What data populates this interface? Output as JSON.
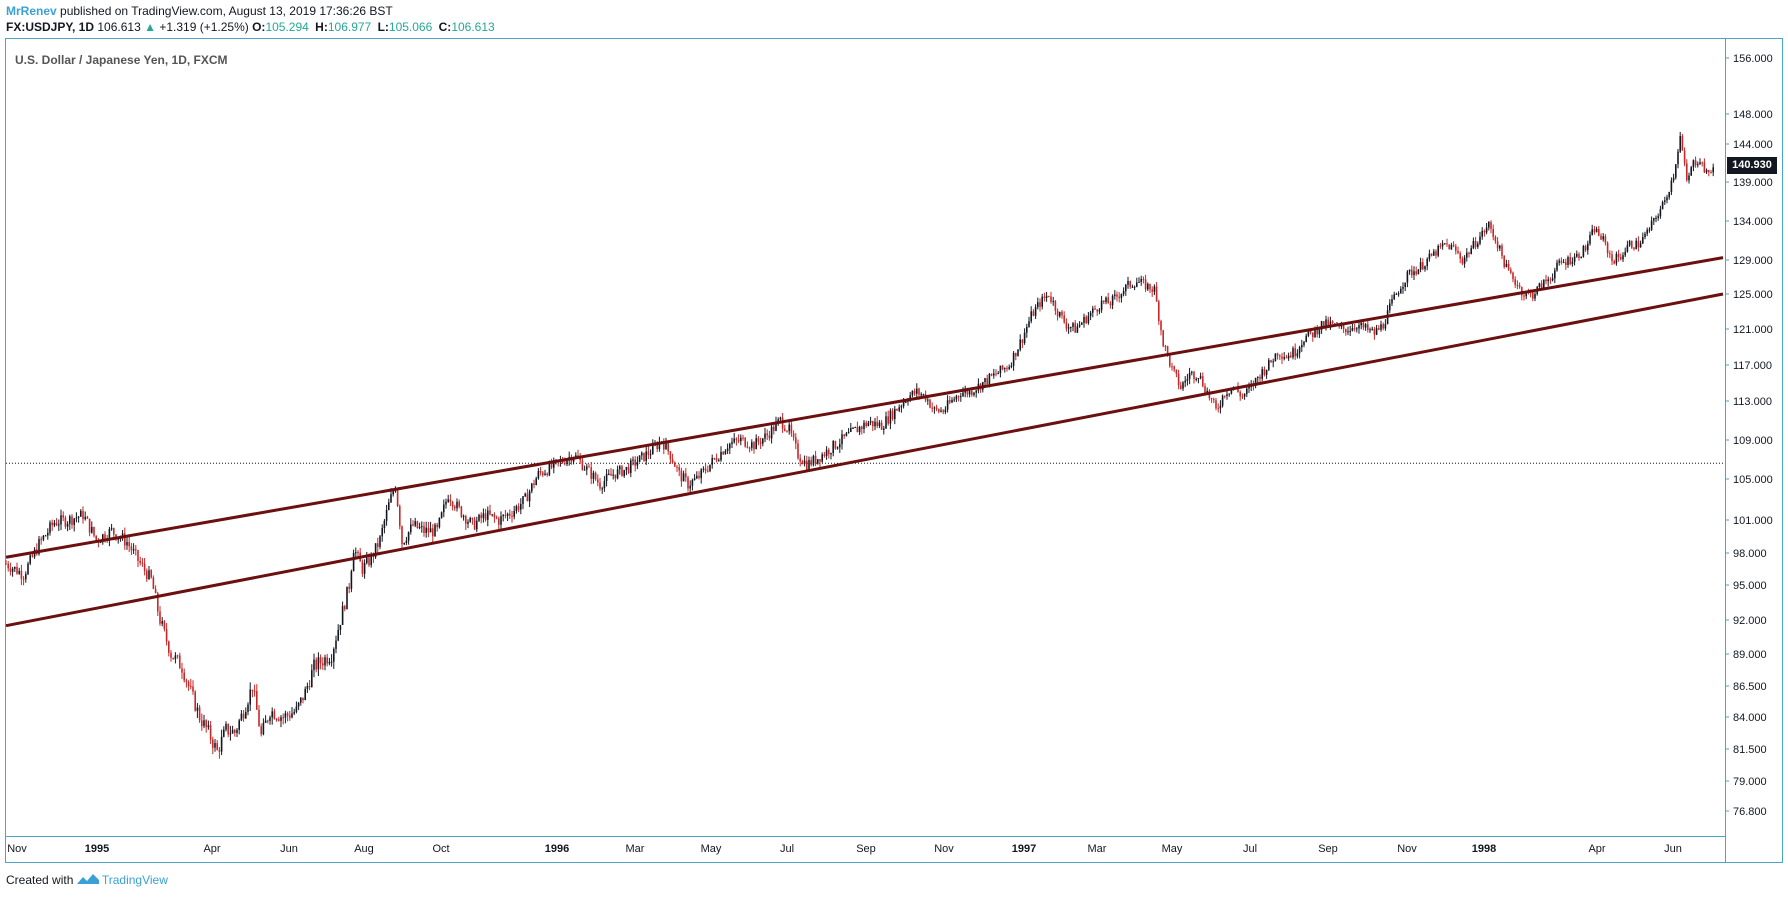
{
  "header": {
    "author": "MrRenev",
    "published_text": "published on TradingView.com, August 13, 2019 17:36:26 BST",
    "symbol": "FX:USDJPY, 1D",
    "last": "106.613",
    "change": "+1.319 (+1.25%)",
    "o_label": "O:",
    "o": "105.294",
    "h_label": "H:",
    "h": "106.977",
    "l_label": "L:",
    "l": "105.066",
    "c_label": "C:",
    "c": "106.613"
  },
  "chart_title": "U.S. Dollar / Japanese Yen, 1D, FXCM",
  "price_badge": "140.930",
  "footer": {
    "created": "Created with",
    "brand": "TradingView"
  },
  "icons": {
    "up_arrow": "triangle-up-icon",
    "logo": "tradingview-logo-icon"
  },
  "colors": {
    "up": "#131722",
    "down": "#c62828",
    "trendline": "#6b0f0f",
    "frame": "#4aa6c8",
    "accent": "#26a69a"
  },
  "chart_data": {
    "type": "candlestick",
    "y_axis_labels": [
      "156.000",
      "148.000",
      "144.000",
      "139.000",
      "134.000",
      "129.000",
      "125.000",
      "121.000",
      "117.000",
      "113.000",
      "109.000",
      "105.000",
      "101.000",
      "98.000",
      "95.000",
      "92.000",
      "89.000",
      "86.500",
      "84.000",
      "81.500",
      "79.000",
      "76.800"
    ],
    "x_axis_labels": [
      "Nov",
      "1995",
      "Apr",
      "Jun",
      "Aug",
      "Oct",
      "1996",
      "Mar",
      "May",
      "Jul",
      "Sep",
      "Nov",
      "1997",
      "Mar",
      "May",
      "Jul",
      "Sep",
      "Nov",
      "1998",
      "Apr",
      "Jun"
    ],
    "ylim": [
      75.3,
      159.0
    ],
    "last_price_line": 106.613,
    "series": [
      {
        "points": [
          [
            0,
            97.0
          ],
          [
            8,
            96.0
          ],
          [
            15,
            98.8
          ],
          [
            22,
            100.8
          ],
          [
            28,
            101.0
          ],
          [
            35,
            101.5
          ],
          [
            41,
            99.2
          ],
          [
            48,
            100.0
          ],
          [
            55,
            99.0
          ],
          [
            61,
            97.0
          ],
          [
            66,
            95.5
          ],
          [
            70,
            92.0
          ],
          [
            75,
            89.0
          ],
          [
            80,
            88.0
          ],
          [
            84,
            86.0
          ],
          [
            88,
            84.0
          ],
          [
            92,
            82.8
          ],
          [
            96,
            81.3
          ],
          [
            100,
            83.0
          ],
          [
            104,
            82.8
          ],
          [
            108,
            84.5
          ],
          [
            112,
            86.5
          ],
          [
            116,
            82.5
          ],
          [
            120,
            84.5
          ],
          [
            126,
            84.0
          ],
          [
            132,
            84.5
          ],
          [
            136,
            86.0
          ],
          [
            140,
            88.0
          ],
          [
            144,
            88.5
          ],
          [
            148,
            89.0
          ],
          [
            152,
            92.0
          ],
          [
            156,
            95.0
          ],
          [
            158,
            98.5
          ],
          [
            162,
            96.5
          ],
          [
            166,
            97.5
          ],
          [
            170,
            99.2
          ],
          [
            174,
            102.5
          ],
          [
            177,
            104.5
          ],
          [
            180,
            99.0
          ],
          [
            185,
            100.5
          ],
          [
            190,
            100.0
          ],
          [
            196,
            100.0
          ],
          [
            201,
            103.5
          ],
          [
            206,
            102.0
          ],
          [
            212,
            100.5
          ],
          [
            218,
            101.5
          ],
          [
            224,
            101.0
          ],
          [
            230,
            101.8
          ],
          [
            236,
            103.0
          ],
          [
            242,
            105.5
          ],
          [
            248,
            106.2
          ],
          [
            254,
            107.0
          ],
          [
            258,
            107.5
          ],
          [
            262,
            106.5
          ],
          [
            266,
            105.5
          ],
          [
            270,
            104.5
          ],
          [
            276,
            105.5
          ],
          [
            282,
            106.0
          ],
          [
            288,
            107.0
          ],
          [
            294,
            108.0
          ],
          [
            298,
            109.0
          ],
          [
            302,
            107.5
          ],
          [
            306,
            105.5
          ],
          [
            310,
            104.5
          ],
          [
            314,
            105.0
          ],
          [
            318,
            106.0
          ],
          [
            322,
            107.0
          ],
          [
            328,
            108.5
          ],
          [
            334,
            109.0
          ],
          [
            340,
            108.5
          ],
          [
            346,
            109.5
          ],
          [
            352,
            111.0
          ],
          [
            356,
            110.0
          ],
          [
            360,
            107.5
          ],
          [
            364,
            106.5
          ],
          [
            368,
            107.0
          ],
          [
            374,
            108.0
          ],
          [
            380,
            109.0
          ],
          [
            386,
            110.0
          ],
          [
            392,
            110.8
          ],
          [
            398,
            110.5
          ],
          [
            404,
            112.0
          ],
          [
            410,
            113.5
          ],
          [
            414,
            114.0
          ],
          [
            418,
            113.5
          ],
          [
            422,
            112.0
          ],
          [
            426,
            112.0
          ],
          [
            430,
            113.0
          ],
          [
            434,
            114.0
          ],
          [
            438,
            114.0
          ],
          [
            444,
            115.0
          ],
          [
            450,
            116.0
          ],
          [
            456,
            117.0
          ],
          [
            462,
            120.0
          ],
          [
            466,
            122.5
          ],
          [
            470,
            124.0
          ],
          [
            474,
            125.0
          ],
          [
            478,
            123.0
          ],
          [
            482,
            121.5
          ],
          [
            486,
            121.0
          ],
          [
            490,
            122.0
          ],
          [
            494,
            123.0
          ],
          [
            498,
            124.0
          ],
          [
            502,
            124.0
          ],
          [
            506,
            125.0
          ],
          [
            510,
            126.0
          ],
          [
            514,
            126.5
          ],
          [
            518,
            126.0
          ],
          [
            522,
            125.5
          ],
          [
            526,
            119.5
          ],
          [
            530,
            116.5
          ],
          [
            534,
            114.5
          ],
          [
            538,
            116.0
          ],
          [
            542,
            116.0
          ],
          [
            546,
            114.0
          ],
          [
            550,
            112.0
          ],
          [
            554,
            114.0
          ],
          [
            558,
            114.5
          ],
          [
            562,
            113.5
          ],
          [
            566,
            114.5
          ],
          [
            570,
            116.0
          ],
          [
            574,
            117.0
          ],
          [
            578,
            118.5
          ],
          [
            582,
            118.0
          ],
          [
            586,
            118.5
          ],
          [
            590,
            120.0
          ],
          [
            594,
            120.5
          ],
          [
            598,
            121.5
          ],
          [
            602,
            121.5
          ],
          [
            606,
            121.0
          ],
          [
            610,
            121.0
          ],
          [
            614,
            121.5
          ],
          [
            618,
            121.0
          ],
          [
            622,
            120.5
          ],
          [
            626,
            121.5
          ],
          [
            630,
            124.0
          ],
          [
            634,
            126.0
          ],
          [
            638,
            127.5
          ],
          [
            642,
            128.0
          ],
          [
            646,
            129.0
          ],
          [
            650,
            130.0
          ],
          [
            654,
            131.0
          ],
          [
            658,
            130.5
          ],
          [
            662,
            129.0
          ],
          [
            666,
            130.5
          ],
          [
            670,
            132.0
          ],
          [
            674,
            133.5
          ],
          [
            678,
            131.0
          ],
          [
            682,
            128.0
          ],
          [
            686,
            126.5
          ],
          [
            690,
            125.0
          ],
          [
            694,
            125.0
          ],
          [
            698,
            126.0
          ],
          [
            702,
            127.0
          ],
          [
            706,
            128.5
          ],
          [
            710,
            129.0
          ],
          [
            714,
            129.5
          ],
          [
            718,
            130.5
          ],
          [
            722,
            133.0
          ],
          [
            726,
            131.5
          ],
          [
            730,
            129.0
          ],
          [
            734,
            129.5
          ],
          [
            738,
            131.0
          ],
          [
            742,
            131.0
          ],
          [
            746,
            132.5
          ],
          [
            750,
            134.5
          ],
          [
            754,
            136.5
          ],
          [
            758,
            140.0
          ],
          [
            761,
            145.0
          ],
          [
            764,
            139.0
          ],
          [
            767,
            141.5
          ],
          [
            770,
            142.0
          ],
          [
            773,
            140.0
          ],
          [
            776,
            140.9
          ]
        ]
      }
    ],
    "trendlines": [
      {
        "start": [
          "Nov 1994",
          97.6
        ],
        "end": [
          "Jul 1998",
          129.3
        ]
      },
      {
        "start": [
          "Nov 1994",
          91.5
        ],
        "end": [
          "Jul 1998",
          125.0
        ]
      }
    ]
  }
}
